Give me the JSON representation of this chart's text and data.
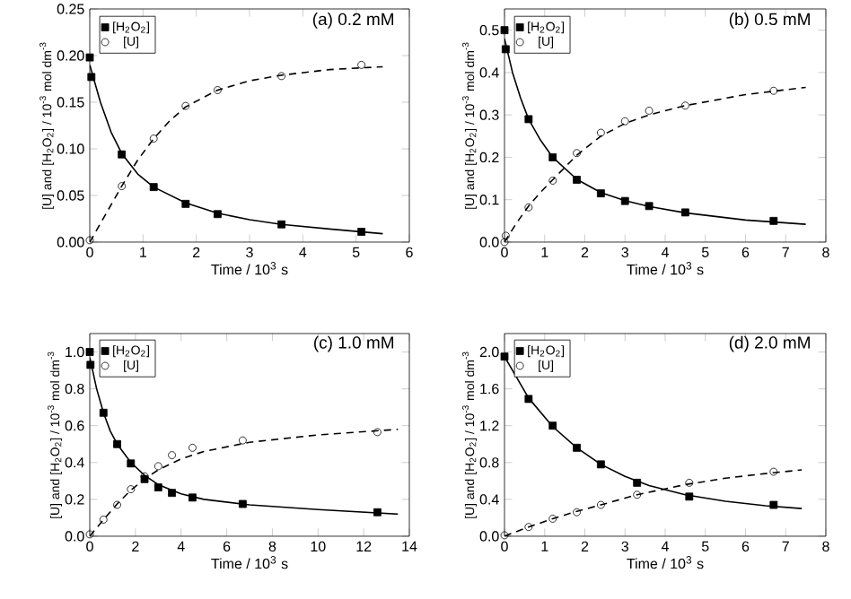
{
  "chart_data": [
    {
      "type": "scatter",
      "title": "(a) 0.2 mM",
      "xlabel": "Time / 10$^{3}$ s",
      "ylabel": "[U] and [H$_{2}$O$_{2}$] / 10$^{-3}$ mol dm$^{-3}$",
      "legend": "top left",
      "xlim": [
        0,
        6
      ],
      "xticks": [
        0,
        1,
        2,
        3,
        4,
        5,
        6
      ],
      "ylim": [
        0,
        0.25
      ],
      "yticks": [
        {
          "value": 0,
          "label": "0.00"
        },
        0.05,
        {
          "value": 0.1,
          "label": "0.10"
        },
        0.15,
        {
          "value": 0.2,
          "label": "0.20"
        },
        0.25
      ],
      "series": [
        {
          "name": "[H$_{2}$O$_{2}$]",
          "color": "#000000",
          "marker": "square",
          "x": [
            0,
            0.03,
            0.6,
            1.2,
            1.8,
            2.4,
            3.6,
            5.1
          ],
          "values": [
            0.198,
            0.177,
            0.094,
            0.059,
            0.041,
            0.03,
            0.019,
            0.011
          ]
        },
        {
          "name": "[U]",
          "color": "#000000",
          "marker": "circle",
          "x": [
            0,
            0.6,
            1.2,
            1.8,
            2.4,
            3.6,
            5.1
          ],
          "values": [
            0.002,
            0.06,
            0.111,
            0.146,
            0.163,
            0.178,
            0.19
          ]
        },
        {
          "type": "line",
          "color": "#000000",
          "line_style": "solid",
          "x": [
            0,
            0.2,
            0.4,
            0.6,
            0.9,
            1.2,
            1.8,
            2.4,
            3,
            3.6,
            4.5,
            5.5
          ],
          "values": [
            0.19,
            0.15,
            0.118,
            0.095,
            0.073,
            0.059,
            0.042,
            0.031,
            0.024,
            0.019,
            0.014,
            0.009
          ]
        },
        {
          "type": "line",
          "color": "#000000",
          "line_style": "dashed",
          "x": [
            0,
            0.3,
            0.6,
            0.9,
            1.2,
            1.5,
            1.8,
            2.4,
            3,
            3.6,
            4.5,
            5.5
          ],
          "values": [
            0,
            0.03,
            0.06,
            0.088,
            0.111,
            0.13,
            0.145,
            0.163,
            0.173,
            0.179,
            0.185,
            0.188
          ]
        }
      ]
    },
    {
      "type": "scatter",
      "title": "(b) 0.5 mM",
      "xlabel": "Time / 10$^{3}$ s",
      "ylabel": "[U] and [H$_{2}$O$_{2}$] / 10$^{-3}$ mol dm$^{-3}$",
      "legend": "top left",
      "xlim": [
        0,
        8
      ],
      "xticks": [
        0,
        1,
        2,
        3,
        4,
        5,
        6,
        7,
        8
      ],
      "ylim": [
        0,
        0.55
      ],
      "yticks": [
        {
          "value": 0,
          "label": "0.0"
        },
        0.1,
        0.2,
        0.3,
        0.4,
        0.5
      ],
      "series": [
        {
          "name": "[H$_{2}$O$_{2}$]",
          "color": "#000000",
          "marker": "square",
          "x": [
            0,
            0.03,
            0.6,
            1.2,
            1.8,
            2.4,
            3,
            3.6,
            4.5,
            6.7
          ],
          "values": [
            0.5,
            0.455,
            0.29,
            0.2,
            0.147,
            0.115,
            0.097,
            0.085,
            0.07,
            0.05
          ]
        },
        {
          "name": "[U]",
          "color": "#000000",
          "marker": "circle",
          "x": [
            0,
            0.03,
            0.6,
            1.2,
            1.8,
            2.4,
            3,
            3.6,
            4.5,
            6.7
          ],
          "values": [
            0.0,
            0.015,
            0.082,
            0.145,
            0.21,
            0.258,
            0.285,
            0.31,
            0.322,
            0.357
          ]
        },
        {
          "type": "line",
          "color": "#000000",
          "line_style": "solid",
          "x": [
            0,
            0.2,
            0.4,
            0.6,
            0.9,
            1.2,
            1.8,
            2.4,
            3,
            3.6,
            4.5,
            6,
            7.5
          ],
          "values": [
            0.48,
            0.4,
            0.34,
            0.29,
            0.24,
            0.2,
            0.148,
            0.117,
            0.098,
            0.084,
            0.069,
            0.052,
            0.042
          ]
        },
        {
          "type": "line",
          "color": "#000000",
          "line_style": "dashed",
          "x": [
            0,
            0.3,
            0.6,
            0.9,
            1.2,
            1.8,
            2.4,
            3,
            3.6,
            4.5,
            6,
            7.5
          ],
          "values": [
            0,
            0.045,
            0.085,
            0.118,
            0.147,
            0.205,
            0.25,
            0.28,
            0.3,
            0.322,
            0.348,
            0.365
          ]
        }
      ]
    },
    {
      "type": "scatter",
      "title": "(c) 1.0 mM",
      "xlabel": "Time / 10$^{3}$ s",
      "ylabel": "[U] and [H$_{2}$O$_{2}$] / 10$^{-3}$ mol dm$^{-3}$",
      "legend": "top left",
      "xlim": [
        0,
        14
      ],
      "xticks": [
        0,
        2,
        4,
        6,
        8,
        10,
        12,
        14
      ],
      "ylim": [
        0,
        1.1
      ],
      "yticks": [
        {
          "value": 0,
          "label": "0.0"
        },
        0.2,
        0.4,
        0.6,
        0.8,
        {
          "value": 1,
          "label": "1.0"
        }
      ],
      "series": [
        {
          "name": "[H$_{2}$O$_{2}$]",
          "color": "#000000",
          "marker": "square",
          "x": [
            0,
            0.03,
            0.6,
            1.2,
            1.8,
            2.4,
            3,
            3.6,
            4.5,
            6.7,
            12.6
          ],
          "values": [
            1.0,
            0.93,
            0.67,
            0.5,
            0.395,
            0.31,
            0.265,
            0.235,
            0.21,
            0.175,
            0.13
          ]
        },
        {
          "name": "[U]",
          "color": "#000000",
          "marker": "circle",
          "x": [
            0,
            0.6,
            1.2,
            1.8,
            2.4,
            3,
            3.6,
            4.5,
            6.7,
            12.6
          ],
          "values": [
            0.01,
            0.09,
            0.17,
            0.255,
            0.325,
            0.38,
            0.44,
            0.48,
            0.52,
            0.565
          ]
        },
        {
          "type": "line",
          "color": "#000000",
          "line_style": "solid",
          "x": [
            0,
            0.3,
            0.6,
            0.9,
            1.2,
            1.8,
            2.4,
            3,
            4,
            5,
            7,
            10,
            13.5
          ],
          "values": [
            0.97,
            0.8,
            0.67,
            0.57,
            0.5,
            0.4,
            0.33,
            0.28,
            0.23,
            0.2,
            0.17,
            0.145,
            0.12
          ]
        },
        {
          "type": "line",
          "color": "#000000",
          "line_style": "dashed",
          "x": [
            0,
            0.6,
            1.2,
            1.8,
            2.4,
            3,
            4,
            5,
            7,
            10,
            13.5
          ],
          "values": [
            0,
            0.09,
            0.175,
            0.25,
            0.31,
            0.36,
            0.42,
            0.46,
            0.51,
            0.55,
            0.58
          ]
        }
      ]
    },
    {
      "type": "scatter",
      "title": "(d) 2.0 mM",
      "xlabel": "Time / 10$^{3}$ s",
      "ylabel": "[U] and [H$_{2}$O$_{2}$] / 10$^{-3}$ mol dm$^{-3}$",
      "legend": "top left",
      "xlim": [
        0,
        8
      ],
      "xticks": [
        0,
        1,
        2,
        3,
        4,
        5,
        6,
        7,
        8
      ],
      "ylim": [
        0,
        2.2
      ],
      "yticks": [
        {
          "value": 0,
          "label": "0.0"
        },
        0.4,
        0.8,
        1.2,
        1.6,
        {
          "value": 2,
          "label": "2.0"
        }
      ],
      "series": [
        {
          "name": "[H$_{2}$O$_{2}$]",
          "color": "#000000",
          "marker": "square",
          "x": [
            0,
            0.6,
            1.2,
            1.8,
            2.4,
            3.3,
            4.6,
            6.7
          ],
          "values": [
            1.95,
            1.49,
            1.2,
            0.96,
            0.78,
            0.58,
            0.43,
            0.34
          ]
        },
        {
          "name": "[U]",
          "color": "#000000",
          "marker": "circle",
          "x": [
            0,
            0.6,
            1.2,
            1.8,
            2.4,
            3.3,
            4.6,
            6.7
          ],
          "values": [
            0.01,
            0.1,
            0.19,
            0.26,
            0.34,
            0.45,
            0.58,
            0.7
          ]
        },
        {
          "type": "line",
          "color": "#000000",
          "line_style": "solid",
          "x": [
            0,
            0.6,
            1.2,
            1.8,
            2.4,
            3,
            3.6,
            4.5,
            5.5,
            6.5,
            7.4
          ],
          "values": [
            1.95,
            1.5,
            1.19,
            0.96,
            0.78,
            0.65,
            0.55,
            0.45,
            0.38,
            0.33,
            0.3
          ]
        },
        {
          "type": "line",
          "color": "#000000",
          "line_style": "dashed",
          "x": [
            0,
            0.6,
            1.2,
            1.8,
            2.4,
            3.3,
            4.5,
            5.5,
            6.5,
            7.4
          ],
          "values": [
            0,
            0.1,
            0.19,
            0.27,
            0.34,
            0.45,
            0.56,
            0.63,
            0.68,
            0.72
          ]
        }
      ]
    }
  ]
}
